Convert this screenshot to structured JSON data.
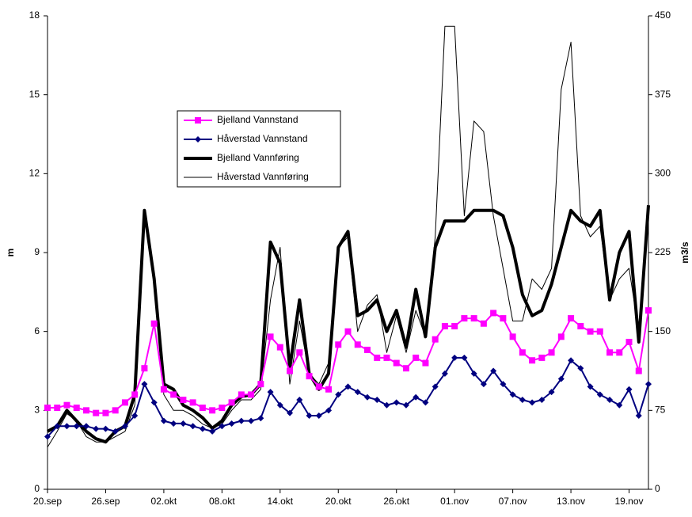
{
  "chart_data": {
    "type": "line",
    "y_label": "m",
    "y2_label": "m3/s",
    "categories": [
      "20.sep",
      null,
      null,
      null,
      null,
      null,
      "26.sep",
      null,
      null,
      null,
      null,
      null,
      "02.okt",
      null,
      null,
      null,
      null,
      null,
      "08.okt",
      null,
      null,
      null,
      null,
      null,
      "14.okt",
      null,
      null,
      null,
      null,
      null,
      "20.okt",
      null,
      null,
      null,
      null,
      null,
      "26.okt",
      null,
      null,
      null,
      null,
      null,
      "01.nov",
      null,
      null,
      null,
      null,
      null,
      "07.nov",
      null,
      null,
      null,
      null,
      null,
      "13.nov",
      null,
      null,
      null,
      null,
      null,
      "19.nov",
      null,
      null
    ],
    "ylim": [
      0,
      18
    ],
    "yticks": [
      0,
      3,
      6,
      9,
      12,
      15,
      18
    ],
    "y2lim": [
      0,
      450
    ],
    "y2ticks": [
      0,
      75,
      150,
      225,
      300,
      375,
      450
    ],
    "series": [
      {
        "name": "Bjelland Vannstand",
        "color": "#ff00ff",
        "marker": "square",
        "width": 2,
        "values": [
          3.1,
          3.1,
          3.2,
          3.1,
          3.0,
          2.9,
          2.9,
          3.0,
          3.3,
          3.6,
          4.6,
          6.3,
          3.8,
          3.6,
          3.4,
          3.3,
          3.1,
          3.0,
          3.1,
          3.3,
          3.6,
          3.6,
          4.0,
          5.8,
          5.4,
          4.5,
          5.2,
          4.3,
          3.9,
          3.8,
          5.5,
          6.0,
          5.5,
          5.3,
          5.0,
          5.0,
          4.8,
          4.6,
          5.0,
          4.8,
          5.7,
          6.2,
          6.2,
          6.5,
          6.5,
          6.3,
          6.7,
          6.5,
          5.8,
          5.2,
          4.9,
          5.0,
          5.2,
          5.8,
          6.5,
          6.2,
          6.0,
          6.0,
          5.2,
          5.2,
          5.6,
          4.5,
          6.8
        ]
      },
      {
        "name": "Håverstad Vannstand",
        "color": "#000080",
        "marker": "diamond",
        "width": 2,
        "values": [
          2.0,
          2.4,
          2.4,
          2.4,
          2.4,
          2.3,
          2.3,
          2.2,
          2.4,
          2.8,
          4.0,
          3.3,
          2.6,
          2.5,
          2.5,
          2.4,
          2.3,
          2.2,
          2.4,
          2.5,
          2.6,
          2.6,
          2.7,
          3.7,
          3.2,
          2.9,
          3.4,
          2.8,
          2.8,
          3.0,
          3.6,
          3.9,
          3.7,
          3.5,
          3.4,
          3.2,
          3.3,
          3.2,
          3.5,
          3.3,
          3.9,
          4.4,
          5.0,
          5.0,
          4.4,
          4.0,
          4.5,
          4.0,
          3.6,
          3.4,
          3.3,
          3.4,
          3.7,
          4.2,
          4.9,
          4.6,
          3.9,
          3.6,
          3.4,
          3.2,
          3.8,
          2.8,
          4.0
        ]
      },
      {
        "name": "Bjelland Vannføring",
        "color": "#000000",
        "axis": "y2",
        "width": 4,
        "values": [
          55,
          60,
          75,
          65,
          55,
          48,
          45,
          55,
          60,
          90,
          265,
          200,
          100,
          95,
          80,
          75,
          68,
          58,
          65,
          80,
          88,
          90,
          100,
          235,
          215,
          115,
          180,
          110,
          95,
          110,
          230,
          245,
          165,
          170,
          180,
          150,
          170,
          135,
          190,
          145,
          230,
          255,
          255,
          255,
          265,
          265,
          265,
          260,
          230,
          185,
          165,
          170,
          195,
          230,
          265,
          255,
          250,
          265,
          180,
          225,
          245,
          140,
          270
        ]
      },
      {
        "name": "Håverstad Vannføring",
        "color": "#000000",
        "axis": "y2",
        "width": 1,
        "values": [
          40,
          55,
          72,
          65,
          50,
          45,
          45,
          50,
          55,
          80,
          260,
          200,
          90,
          75,
          75,
          70,
          62,
          58,
          62,
          75,
          85,
          85,
          95,
          180,
          230,
          100,
          160,
          110,
          100,
          120,
          230,
          240,
          150,
          175,
          185,
          130,
          165,
          130,
          170,
          145,
          240,
          440,
          440,
          260,
          350,
          340,
          260,
          210,
          160,
          160,
          200,
          190,
          210,
          380,
          425,
          260,
          240,
          250,
          180,
          200,
          210,
          150,
          270
        ]
      }
    ]
  }
}
